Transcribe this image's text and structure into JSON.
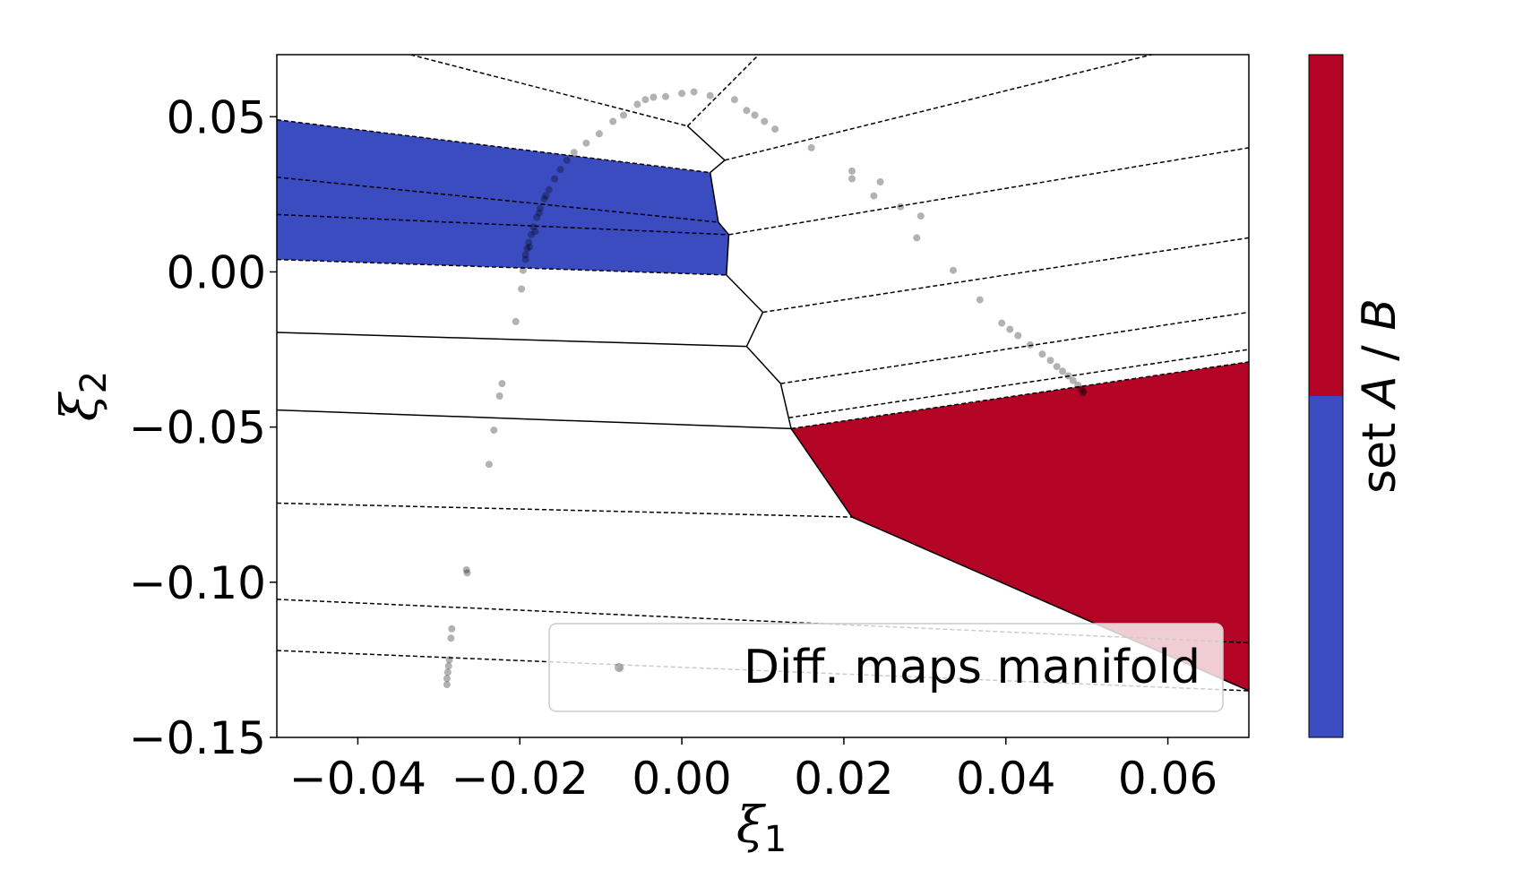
{
  "chart_data": {
    "type": "scatter",
    "title": "",
    "xlabel": "ξ",
    "xlabel_sub": "1",
    "ylabel": "ξ",
    "ylabel_sub": "2",
    "xlim": [
      -0.05,
      0.07
    ],
    "ylim": [
      -0.15,
      0.07
    ],
    "xticks": [
      -0.04,
      -0.02,
      0.0,
      0.02,
      0.04,
      0.06
    ],
    "xtick_labels": [
      "−0.04",
      "−0.02",
      "0.00",
      "0.02",
      "0.04",
      "0.06"
    ],
    "yticks": [
      -0.15,
      -0.1,
      -0.05,
      0.0,
      0.05
    ],
    "ytick_labels": [
      "−0.15",
      "−0.10",
      "−0.05",
      "0.00",
      "0.05"
    ],
    "grid": false,
    "legend": {
      "label": "Diff. maps manifold",
      "placement": "lower-right"
    },
    "colorbar": {
      "label_prefix": "set ",
      "label_a": "A",
      "label_sep": " / ",
      "label_b": "B",
      "colors": [
        "#3a4cc0",
        "#b40426"
      ]
    },
    "regions": [
      {
        "name": "set-A-region",
        "set": "A",
        "color": "#3a4cc0",
        "polygon": [
          [
            -0.05,
            0.049
          ],
          [
            0.0035,
            0.032
          ],
          [
            0.0045,
            0.016
          ],
          [
            0.0058,
            0.012
          ],
          [
            0.0055,
            -0.001
          ],
          [
            -0.05,
            0.004
          ]
        ]
      },
      {
        "name": "set-B-region",
        "set": "B",
        "color": "#b40426",
        "polygon": [
          [
            0.0135,
            -0.0505
          ],
          [
            0.07,
            -0.029
          ],
          [
            0.07,
            -0.135
          ],
          [
            0.021,
            -0.079
          ]
        ]
      }
    ],
    "solid_boundaries": [
      [
        [
          0.0007,
          0.047
        ],
        [
          0.0053,
          0.036
        ],
        [
          0.0035,
          0.032
        ],
        [
          0.0045,
          0.016
        ],
        [
          0.0058,
          0.012
        ],
        [
          0.0055,
          -0.001
        ],
        [
          0.01,
          -0.013
        ],
        [
          0.008,
          -0.024
        ],
        [
          0.0122,
          -0.036
        ],
        [
          0.0135,
          -0.0505
        ],
        [
          0.021,
          -0.079
        ],
        [
          0.07,
          -0.135
        ]
      ],
      [
        [
          -0.05,
          -0.0195
        ],
        [
          0.008,
          -0.024
        ]
      ],
      [
        [
          -0.05,
          -0.0445
        ],
        [
          0.0135,
          -0.0505
        ]
      ]
    ],
    "dashed_boundaries": [
      [
        [
          -0.0335,
          0.07
        ],
        [
          0.0007,
          0.047
        ]
      ],
      [
        [
          0.0007,
          0.047
        ],
        [
          0.0095,
          0.07
        ]
      ],
      [
        [
          0.0053,
          0.036
        ],
        [
          0.058,
          0.07
        ]
      ],
      [
        [
          -0.05,
          0.049
        ],
        [
          0.0035,
          0.032
        ]
      ],
      [
        [
          -0.05,
          0.0305
        ],
        [
          0.0045,
          0.016
        ]
      ],
      [
        [
          -0.05,
          0.0185
        ],
        [
          0.0058,
          0.012
        ]
      ],
      [
        [
          -0.05,
          0.004
        ],
        [
          0.0055,
          -0.001
        ]
      ],
      [
        [
          0.0058,
          0.012
        ],
        [
          0.07,
          0.04
        ]
      ],
      [
        [
          0.01,
          -0.013
        ],
        [
          0.07,
          0.011
        ]
      ],
      [
        [
          0.0122,
          -0.036
        ],
        [
          0.07,
          -0.013
        ]
      ],
      [
        [
          0.0132,
          -0.047
        ],
        [
          0.07,
          -0.025
        ]
      ],
      [
        [
          0.0135,
          -0.0505
        ],
        [
          0.07,
          -0.029
        ]
      ],
      [
        [
          -0.05,
          -0.0745
        ],
        [
          0.021,
          -0.079
        ]
      ],
      [
        [
          -0.05,
          -0.1055
        ],
        [
          0.07,
          -0.1195
        ]
      ],
      [
        [
          -0.05,
          -0.122
        ],
        [
          0.07,
          -0.135
        ]
      ]
    ],
    "series": [
      {
        "name": "Diff. maps manifold",
        "color": "#000000",
        "points": [
          [
            -0.029,
            -0.133
          ],
          [
            -0.029,
            -0.131
          ],
          [
            -0.0289,
            -0.129
          ],
          [
            -0.0288,
            -0.127
          ],
          [
            -0.0287,
            -0.125
          ],
          [
            -0.0285,
            -0.118
          ],
          [
            -0.0284,
            -0.115
          ],
          [
            -0.0265,
            -0.097
          ],
          [
            -0.0266,
            -0.096
          ],
          [
            -0.0238,
            -0.062
          ],
          [
            -0.0232,
            -0.051
          ],
          [
            -0.0225,
            -0.04
          ],
          [
            -0.0222,
            -0.036
          ],
          [
            -0.0205,
            -0.016
          ],
          [
            -0.0198,
            -0.0055
          ],
          [
            -0.0196,
            0.0005
          ],
          [
            -0.0193,
            0.0055
          ],
          [
            -0.0191,
            0.0075
          ],
          [
            -0.0189,
            0.0095
          ],
          [
            -0.0186,
            0.012
          ],
          [
            -0.0183,
            0.0145
          ],
          [
            -0.0179,
            0.0175
          ],
          [
            -0.0175,
            0.0205
          ],
          [
            -0.017,
            0.0235
          ],
          [
            -0.0164,
            0.0265
          ],
          [
            -0.0157,
            0.03
          ],
          [
            -0.015,
            0.033
          ],
          [
            -0.0142,
            0.036
          ],
          [
            -0.0133,
            0.0385
          ],
          [
            -0.0118,
            0.0415
          ],
          [
            -0.0102,
            0.0445
          ],
          [
            -0.0085,
            0.0485
          ],
          [
            -0.0072,
            0.0505
          ],
          [
            -0.0055,
            0.054
          ],
          [
            -0.0045,
            0.0555
          ],
          [
            -0.0035,
            0.0563
          ],
          [
            -0.002,
            0.0565
          ],
          [
            0.0,
            0.0575
          ],
          [
            0.0015,
            0.058
          ],
          [
            0.0035,
            0.0568
          ],
          [
            0.0065,
            0.0555
          ],
          [
            0.008,
            0.052
          ],
          [
            0.009,
            0.0505
          ],
          [
            0.0102,
            0.0485
          ],
          [
            0.0115,
            0.046
          ],
          [
            0.016,
            0.04
          ],
          [
            0.021,
            0.0325
          ],
          [
            0.021,
            0.03
          ],
          [
            0.0245,
            0.029
          ],
          [
            0.0237,
            0.0245
          ],
          [
            0.027,
            0.021
          ],
          [
            0.0295,
            0.018
          ],
          [
            0.029,
            0.011
          ],
          [
            0.0335,
            0.0005
          ],
          [
            0.0368,
            -0.009
          ],
          [
            0.0395,
            -0.0165
          ],
          [
            0.0405,
            -0.0185
          ],
          [
            0.0415,
            -0.0205
          ],
          [
            0.043,
            -0.0235
          ],
          [
            0.0445,
            -0.0265
          ],
          [
            0.0455,
            -0.0285
          ],
          [
            0.0463,
            -0.0305
          ],
          [
            0.047,
            -0.032
          ],
          [
            0.0477,
            -0.0335
          ],
          [
            0.0483,
            -0.035
          ],
          [
            0.0489,
            -0.0365
          ],
          [
            0.0493,
            -0.0378
          ],
          [
            0.0496,
            -0.0385
          ],
          [
            -0.0075,
            -0.128
          ],
          [
            -0.0193,
            0.004
          ],
          [
            -0.0188,
            0.008
          ],
          [
            -0.0181,
            0.013
          ],
          [
            -0.0176,
            0.019
          ],
          [
            -0.0168,
            0.0245
          ],
          [
            0.0495,
            -0.039
          ]
        ]
      }
    ]
  }
}
